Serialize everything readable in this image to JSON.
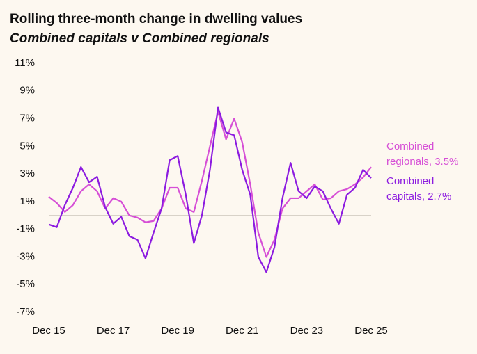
{
  "chart_data": {
    "type": "line",
    "title": "Rolling three-month change in dwelling values",
    "subtitle": "Combined capitals v Combined regionals",
    "x": [
      "Dec 15",
      "Mar 16",
      "Jun 16",
      "Sep 16",
      "Dec 16",
      "Mar 17",
      "Jun 17",
      "Sep 17",
      "Dec 17",
      "Mar 18",
      "Jun 18",
      "Sep 18",
      "Dec 18",
      "Mar 19",
      "Jun 19",
      "Sep 19",
      "Dec 19",
      "Mar 20",
      "Jun 20",
      "Sep 20",
      "Dec 20",
      "Mar 21",
      "Jun 21",
      "Sep 21",
      "Dec 21",
      "Mar 22",
      "Jun 22",
      "Sep 22",
      "Dec 22",
      "Mar 23",
      "Jun 23",
      "Sep 23",
      "Dec 23",
      "Mar 24",
      "Jun 24",
      "Sep 24",
      "Dec 24",
      "Mar 25",
      "Jun 25",
      "Sep 25",
      "Dec 25"
    ],
    "xticks": [
      "Dec 15",
      "Dec 17",
      "Dec 19",
      "Dec 21",
      "Dec 23",
      "Dec 25"
    ],
    "series": [
      {
        "name": "Combined regionals, 3.5%",
        "color": "#d64fd6",
        "values": [
          1.35,
          0.9,
          0.25,
          0.75,
          1.75,
          2.25,
          1.75,
          0.5,
          1.25,
          1.0,
          0,
          -0.15,
          -0.5,
          -0.4,
          0.5,
          2.0,
          2.0,
          0.5,
          0.25,
          2.5,
          5.0,
          7.5,
          5.5,
          7.0,
          5.3,
          2.25,
          -1.25,
          -3.0,
          -1.75,
          0.5,
          1.25,
          1.25,
          1.75,
          2.25,
          1.15,
          1.25,
          1.75,
          1.9,
          2.25,
          2.75,
          3.5
        ]
      },
      {
        "name": "Combined capitals, 2.7%",
        "color": "#8c1be0",
        "values": [
          -0.65,
          -0.85,
          0.75,
          2.0,
          3.5,
          2.4,
          2.8,
          0.6,
          -0.6,
          -0.1,
          -1.5,
          -1.75,
          -3.1,
          -1.25,
          0.5,
          4.0,
          4.3,
          1.5,
          -2.0,
          0,
          3.3,
          7.8,
          6.0,
          5.8,
          3.3,
          1.5,
          -3.0,
          -4.1,
          -2.3,
          1.25,
          3.8,
          1.75,
          1.25,
          2.1,
          1.75,
          0.5,
          -0.6,
          1.5,
          2.0,
          3.3,
          2.7
        ]
      }
    ],
    "ylim": [
      -7,
      11
    ],
    "yticks": [
      {
        "value": 11,
        "label": "11%"
      },
      {
        "value": 9,
        "label": "9%"
      },
      {
        "value": 7,
        "label": "7%"
      },
      {
        "value": 5,
        "label": "5%"
      },
      {
        "value": 3,
        "label": "3%"
      },
      {
        "value": 1,
        "label": "1%"
      },
      {
        "value": -1,
        "label": "-1%"
      },
      {
        "value": -3,
        "label": "-3%"
      },
      {
        "value": -5,
        "label": "-5%"
      },
      {
        "value": -7,
        "label": "-7%"
      }
    ],
    "hline": 0
  }
}
